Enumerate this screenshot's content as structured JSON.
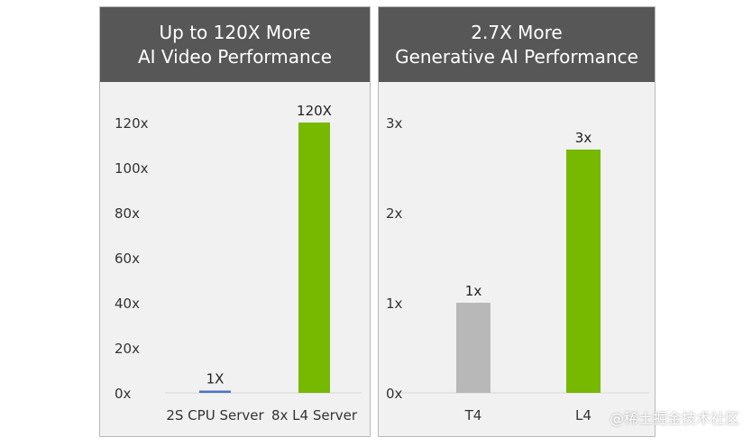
{
  "chart_data": [
    {
      "type": "bar",
      "title": [
        "Up to 120X More",
        "AI Video Performance"
      ],
      "categories": [
        "2S CPU Server",
        "8x L4 Server"
      ],
      "values": [
        1,
        120
      ],
      "data_labels": [
        "1X",
        "120X"
      ],
      "colors": [
        "#4a72c8",
        "#76b900"
      ],
      "ylim": [
        0,
        120
      ],
      "yticks": [
        0,
        20,
        40,
        60,
        80,
        100,
        120
      ],
      "ytick_labels": [
        "0x",
        "20x",
        "40x",
        "60x",
        "80x",
        "100x",
        "120x"
      ],
      "grid": false
    },
    {
      "type": "bar",
      "title": [
        "2.7X More",
        "Generative AI Performance"
      ],
      "categories": [
        "T4",
        "L4"
      ],
      "values": [
        1,
        2.7
      ],
      "data_labels": [
        "1x",
        "3x"
      ],
      "colors": [
        "#b8b8b8",
        "#76b900"
      ],
      "ylim": [
        0,
        3
      ],
      "yticks": [
        0,
        1,
        2,
        3
      ],
      "ytick_labels": [
        "0x",
        "1x",
        "2x",
        "3x"
      ],
      "grid": false
    }
  ],
  "watermark": "@稀土掘金技术社区"
}
